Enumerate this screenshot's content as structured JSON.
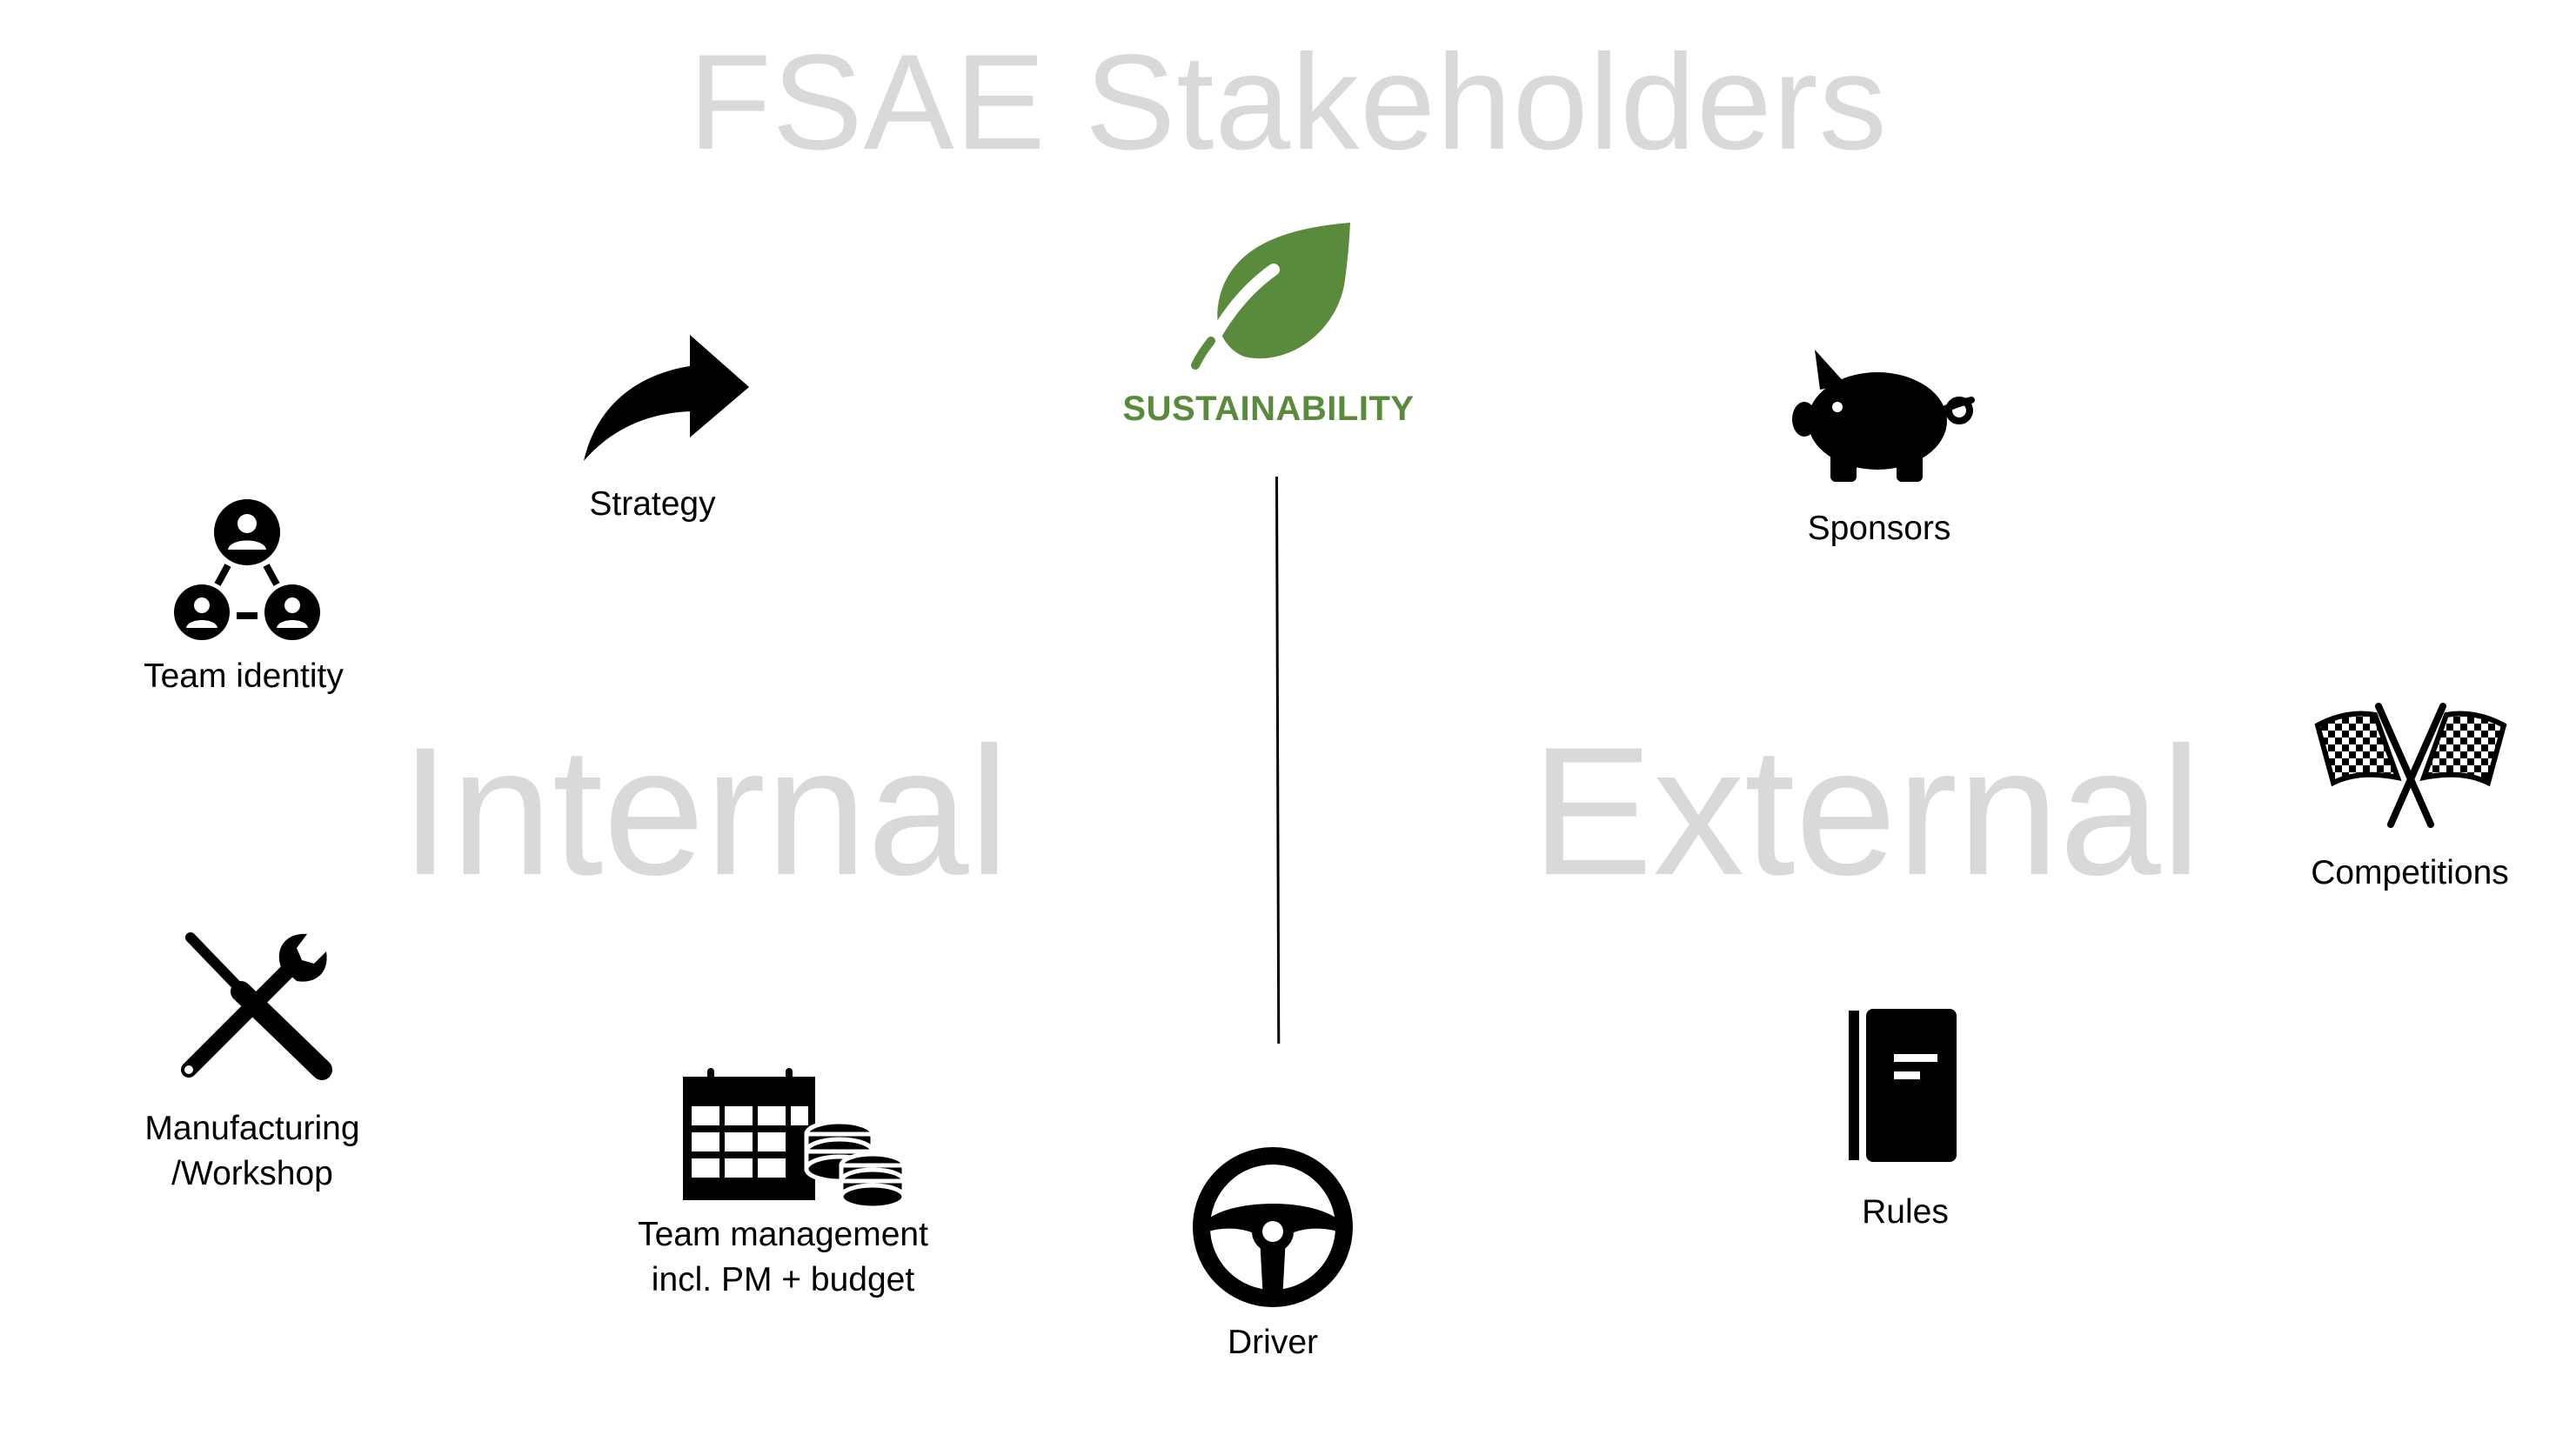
{
  "title": "FSAE Stakeholders",
  "sections": {
    "internal": "Internal",
    "external": "External"
  },
  "center": {
    "label": "SUSTAINABILITY",
    "color": "#5a8a3c",
    "icon": "leaf-icon"
  },
  "internal_items": {
    "strategy": {
      "label": "Strategy",
      "icon": "curved-arrow-icon"
    },
    "team_identity": {
      "label": "Team identity",
      "icon": "people-network-icon"
    },
    "manufacturing": {
      "label_line1": "Manufacturing",
      "label_line2": "/Workshop",
      "icon": "tools-icon"
    },
    "team_management": {
      "label_line1": "Team management",
      "label_line2": "incl. PM + budget",
      "icon": "calendar-coins-icon"
    },
    "driver": {
      "label": "Driver",
      "icon": "steering-wheel-icon"
    }
  },
  "external_items": {
    "sponsors": {
      "label": "Sponsors",
      "icon": "piggy-bank-icon"
    },
    "competitions": {
      "label": "Competitions",
      "icon": "checkered-flags-icon"
    },
    "rules": {
      "label": "Rules",
      "icon": "book-icon"
    }
  },
  "colors": {
    "watermark_text": "#d9d9d9",
    "icon": "#000000",
    "sustainability": "#5a8a3c"
  }
}
